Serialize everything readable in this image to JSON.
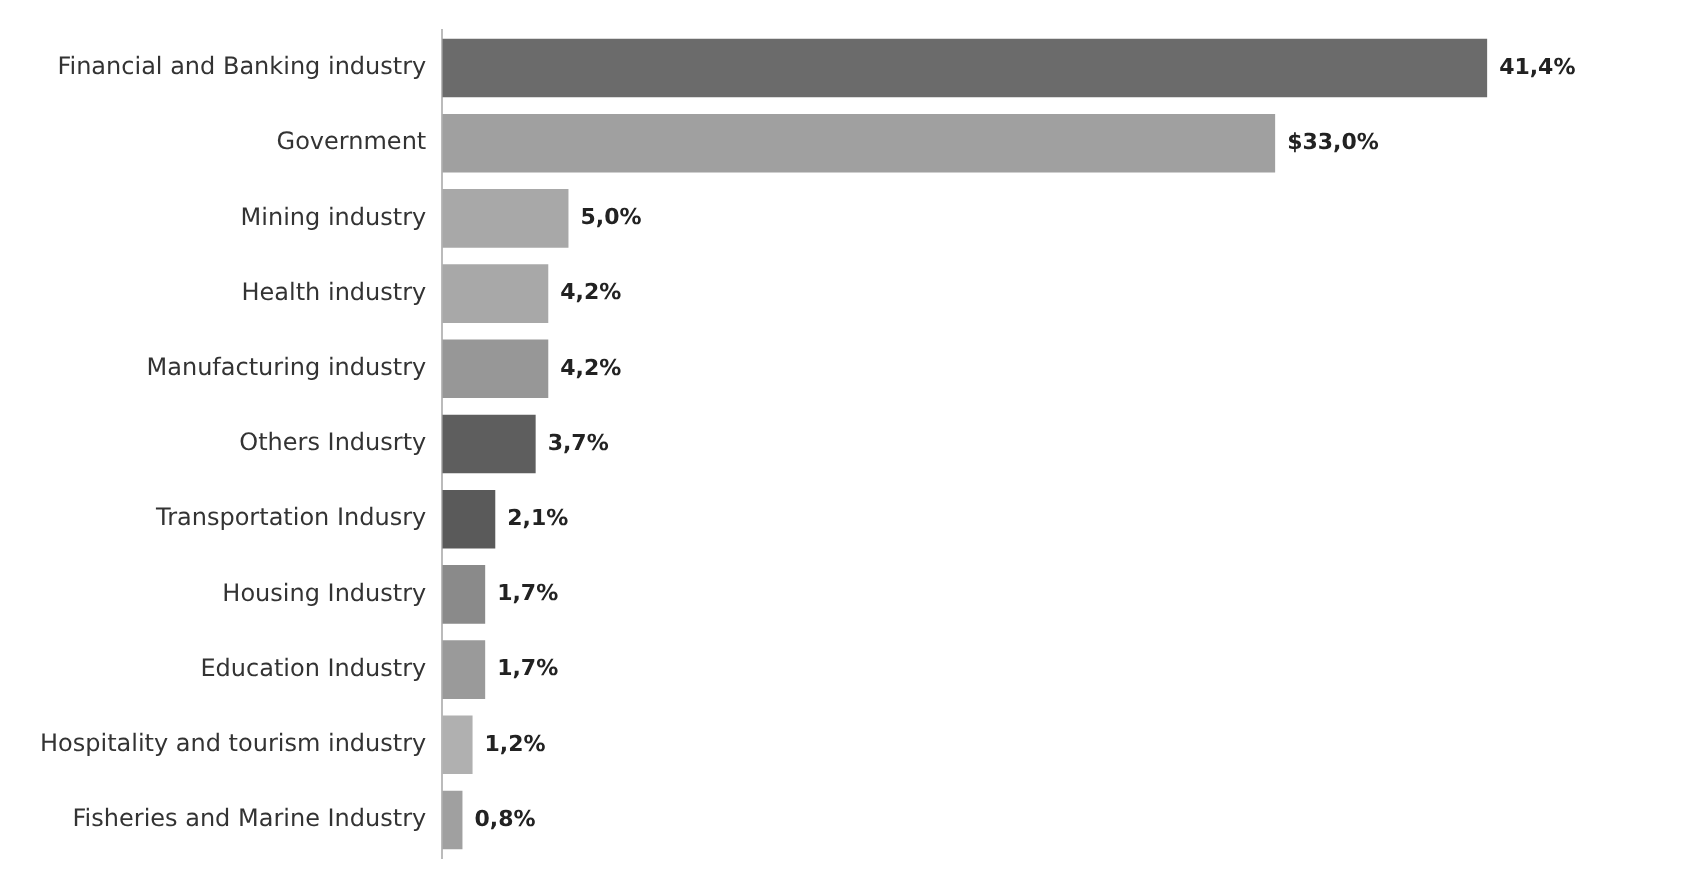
{
  "chart_data": {
    "type": "bar",
    "orientation": "horizontal",
    "categories": [
      "Financial and Banking industry",
      "Government",
      "Mining industry",
      "Health industry",
      "Manufacturing industry",
      "Others Indusrty",
      "Transportation Indusry",
      "Housing Industry",
      "Education Industry",
      "Hospitality and tourism industry",
      "Fisheries and Marine Industry"
    ],
    "values": [
      41.4,
      33.0,
      5.0,
      4.2,
      4.2,
      3.7,
      2.1,
      1.7,
      1.7,
      1.2,
      0.8
    ],
    "value_labels": [
      "41,4%",
      "$33,0%",
      "5,0%",
      "4,2%",
      "4,2%",
      "3,7%",
      "2,1%",
      "1,7%",
      "1,7%",
      "1,2%",
      "0,8%"
    ],
    "colors": [
      "#6b6b6b",
      "#a0a0a0",
      "#a8a8a8",
      "#a8a8a8",
      "#979797",
      "#5e5e5e",
      "#5a5a5a",
      "#8a8a8a",
      "#9a9a9a",
      "#b0b0b0",
      "#a0a0a0"
    ],
    "tick_labels": "y",
    "grid": false,
    "legend": false
  }
}
